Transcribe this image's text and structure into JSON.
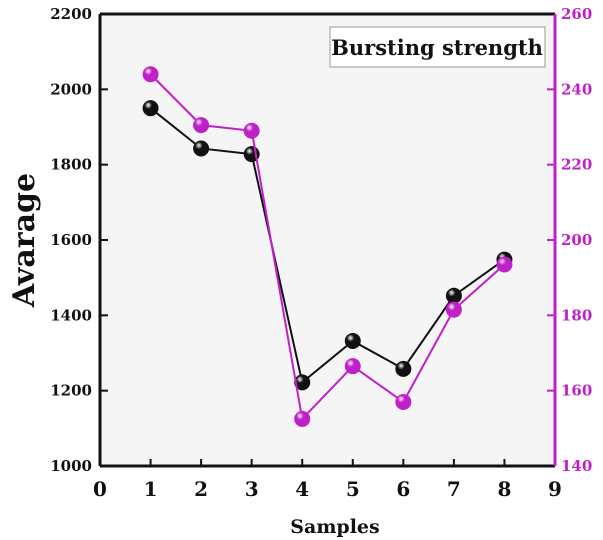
{
  "chart_data": {
    "type": "line",
    "title": "",
    "xlabel": "Samples",
    "ylabel": "Avarage",
    "y2label": "",
    "x": [
      1,
      2,
      3,
      4,
      5,
      6,
      7,
      8
    ],
    "xlim": [
      0,
      9
    ],
    "xticks": [
      "0",
      "1",
      "2",
      "3",
      "4",
      "5",
      "6",
      "7",
      "8",
      "9"
    ],
    "ylim": [
      1000,
      2200
    ],
    "yticks": [
      "1000",
      "1200",
      "1400",
      "1600",
      "1800",
      "2000",
      "2200"
    ],
    "y2lim": [
      140,
      260
    ],
    "y2ticks": [
      "140",
      "160",
      "180",
      "200",
      "220",
      "240",
      "260"
    ],
    "legend_box": "Bursting strength",
    "legend_position": "top-right",
    "series": [
      {
        "axis": "left",
        "color": "#111111",
        "values": [
          1950,
          1843,
          1828,
          1222,
          1332,
          1258,
          1452,
          1548
        ]
      },
      {
        "axis": "right",
        "color": "#c020c8",
        "values": [
          244,
          230.5,
          229,
          152.5,
          166.5,
          157,
          181.5,
          193.5
        ]
      }
    ],
    "right_axis_color": "#c020c8",
    "plot_background": "#f5f5f5"
  }
}
